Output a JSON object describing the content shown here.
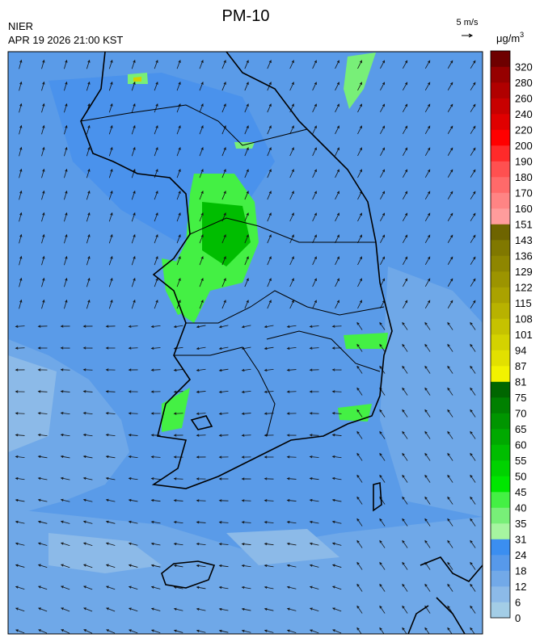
{
  "header": {
    "title": "PM-10",
    "agency": "NIER",
    "timestamp": "APR 19 2026 21:00 KST"
  },
  "wind_legend": {
    "label": "5 m/s"
  },
  "colorbar": {
    "unit": "μg/m",
    "unit_power": "3",
    "levels": [
      "0",
      "6",
      "12",
      "18",
      "24",
      "31",
      "35",
      "40",
      "45",
      "50",
      "55",
      "60",
      "65",
      "70",
      "75",
      "81",
      "87",
      "94",
      "101",
      "108",
      "115",
      "122",
      "129",
      "136",
      "143",
      "151",
      "160",
      "170",
      "180",
      "190",
      "200",
      "220",
      "240",
      "260",
      "280",
      "320"
    ],
    "colors": [
      "#a3cde6",
      "#8cbae8",
      "#72a9e8",
      "#5799ea",
      "#3b8ef0",
      "#a6f5a0",
      "#78ef78",
      "#44f044",
      "#00e600",
      "#00d200",
      "#00bd00",
      "#00a900",
      "#009500",
      "#008000",
      "#006600",
      "#f2f200",
      "#e2e000",
      "#d4d200",
      "#c6c200",
      "#b8b200",
      "#aaa200",
      "#9c9400",
      "#8e8600",
      "#807800",
      "#6e6400",
      "#ff9c9c",
      "#ff8484",
      "#ff6a6a",
      "#ff5050",
      "#ff2a2a",
      "#ff0000",
      "#e00000",
      "#c80000",
      "#b00000",
      "#960000",
      "#6e0000"
    ]
  }
}
